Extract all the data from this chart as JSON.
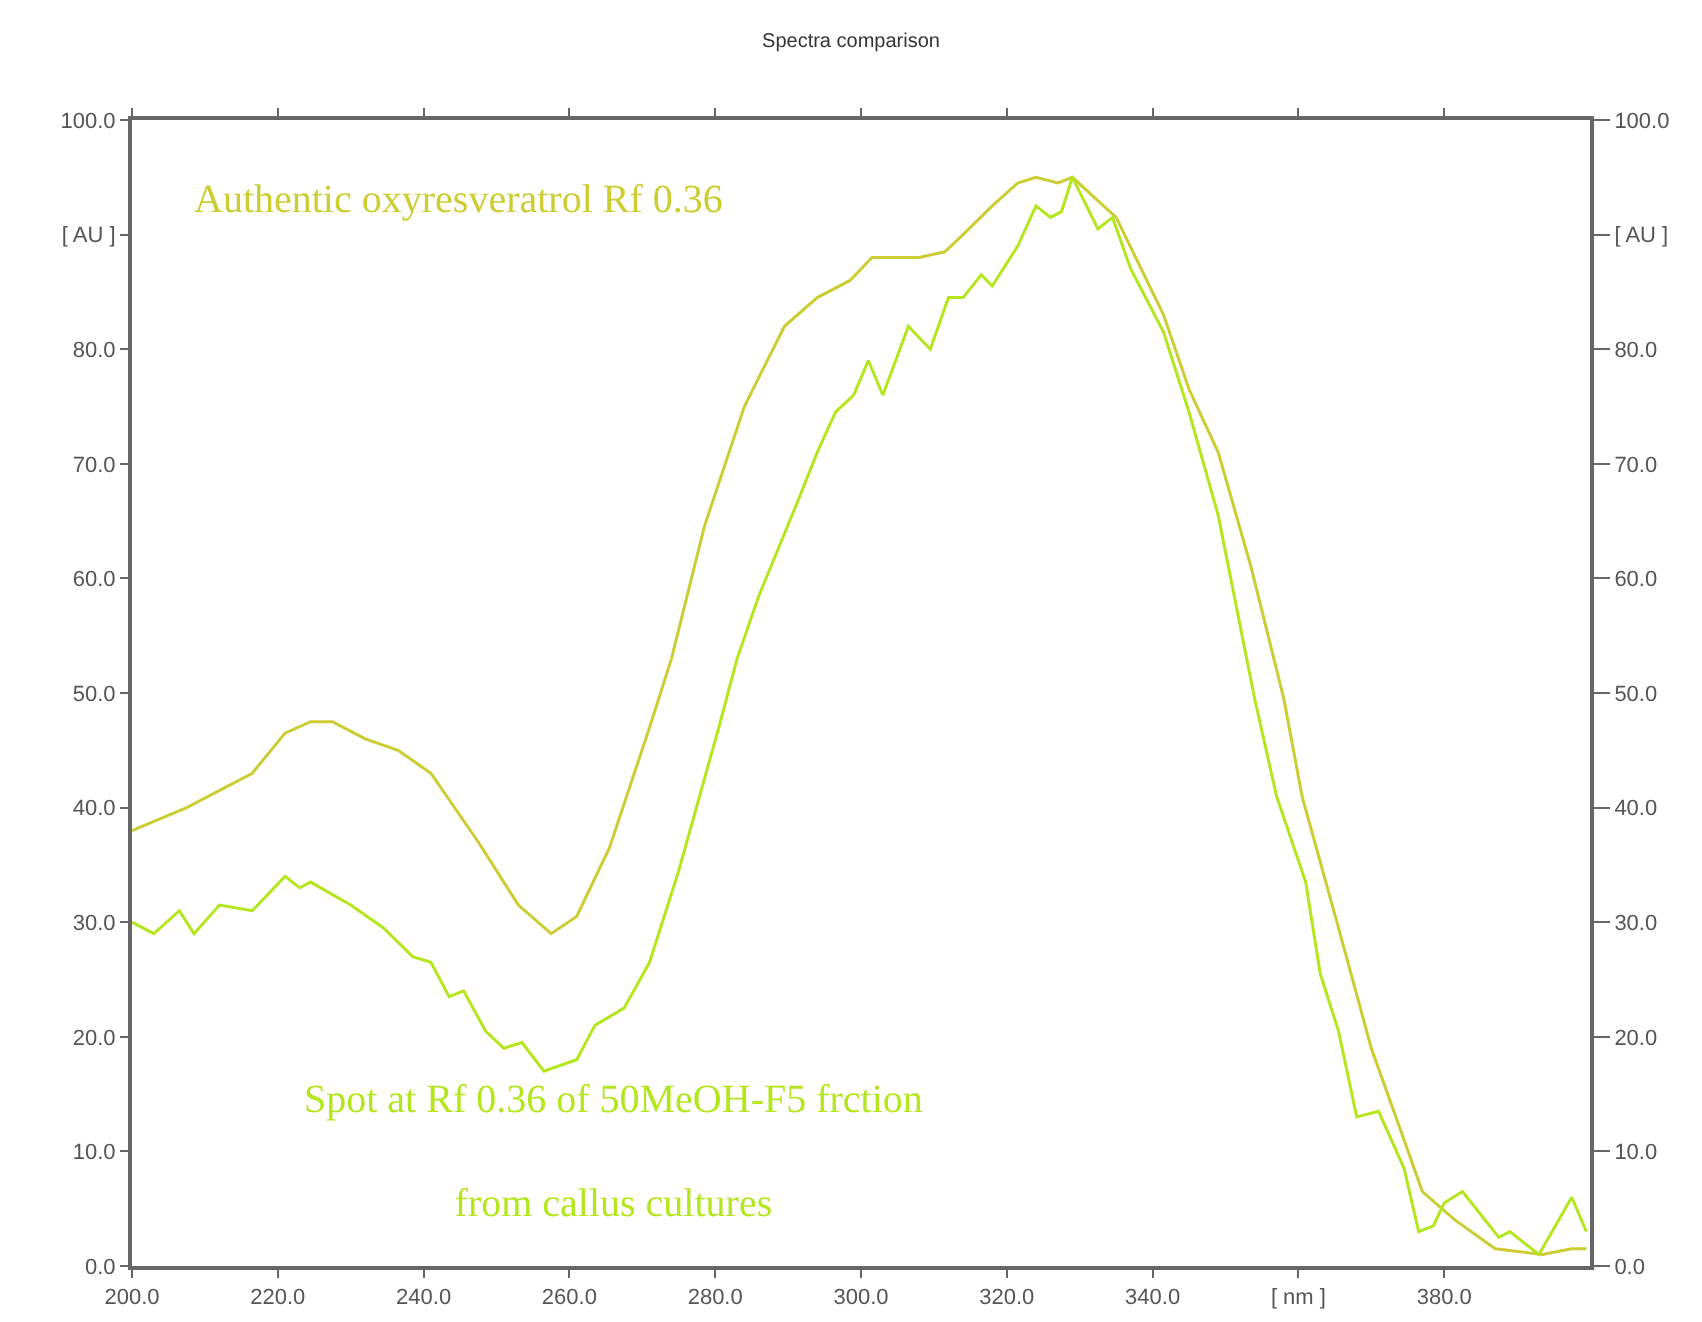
{
  "chart_data": {
    "type": "line",
    "title": "Spectra comparison",
    "xlim": [
      200,
      400
    ],
    "xticks": [
      {
        "value": 200,
        "label": "200.0"
      },
      {
        "value": 220,
        "label": "220.0"
      },
      {
        "value": 240,
        "label": "240.0"
      },
      {
        "value": 260,
        "label": "260.0"
      },
      {
        "value": 280,
        "label": "280.0"
      },
      {
        "value": 300,
        "label": "300.0"
      },
      {
        "value": 320,
        "label": "320.0"
      },
      {
        "value": 340,
        "label": "340.0"
      },
      {
        "value": 360,
        "label": "[ nm ]"
      },
      {
        "value": 380,
        "label": "380.0"
      }
    ],
    "ylim": [
      0,
      100
    ],
    "yticks": [
      {
        "value": 0,
        "label": "0.0"
      },
      {
        "value": 10,
        "label": "10.0"
      },
      {
        "value": 20,
        "label": "20.0"
      },
      {
        "value": 30,
        "label": "30.0"
      },
      {
        "value": 40,
        "label": "40.0"
      },
      {
        "value": 50,
        "label": "50.0"
      },
      {
        "value": 60,
        "label": "60.0"
      },
      {
        "value": 70,
        "label": "70.0"
      },
      {
        "value": 80,
        "label": "80.0"
      },
      {
        "value": 90,
        "label": "[ AU ]"
      },
      {
        "value": 100,
        "label": "100.0"
      }
    ],
    "y2lim": [
      0,
      100
    ],
    "y2ticks": [
      {
        "value": 0,
        "label": "0.0"
      },
      {
        "value": 10,
        "label": "10.0"
      },
      {
        "value": 20,
        "label": "20.0"
      },
      {
        "value": 30,
        "label": "30.0"
      },
      {
        "value": 40,
        "label": "40.0"
      },
      {
        "value": 50,
        "label": "50.0"
      },
      {
        "value": 60,
        "label": "60.0"
      },
      {
        "value": 70,
        "label": "70.0"
      },
      {
        "value": 80,
        "label": "80.0"
      },
      {
        "value": 90,
        "label": "[ AU ]"
      },
      {
        "value": 100,
        "label": "100.0"
      }
    ],
    "grid": false,
    "legend": false,
    "marker": "none",
    "line_style": "solid",
    "series": [
      {
        "name": "Authentic oxyresveratrol Rf 0.36",
        "color": "#cccc33",
        "x": [
          200,
          207.5,
          216.5,
          221,
          224.5,
          227.5,
          232,
          236.5,
          241,
          247.5,
          253,
          257.5,
          261,
          265.5,
          271,
          274,
          278.5,
          284,
          289.5,
          294,
          298.5,
          301.5,
          308,
          311.5,
          314,
          318,
          321.5,
          324,
          327,
          329,
          335,
          341.5,
          345,
          349,
          353.5,
          358,
          360.5,
          365.5,
          370,
          374.5,
          377,
          381.5,
          387,
          393.5,
          397.5,
          399.5
        ],
        "values": [
          38,
          40,
          43,
          46.5,
          47.5,
          47.5,
          46,
          45,
          43,
          37,
          31.5,
          29,
          30.5,
          36.5,
          47,
          53,
          64.5,
          75,
          82,
          84.5,
          86,
          88,
          88,
          88.5,
          90,
          92.5,
          94.5,
          95,
          94.5,
          95,
          91.5,
          83,
          76.5,
          71,
          61,
          49.5,
          41,
          29.5,
          19,
          11,
          6.5,
          4,
          1.5,
          1,
          1.5,
          1.5
        ]
      },
      {
        "name": "Spot at Rf 0.36 of 50MeOH-F5 frction\nfrom callus cultures",
        "color": "#b4e61e",
        "x": [
          200,
          203,
          206.5,
          208.5,
          212,
          216.5,
          221,
          223,
          224.5,
          230,
          234.5,
          238.5,
          241,
          243.5,
          245.5,
          248.5,
          251,
          253.5,
          256.5,
          261,
          263.5,
          267.5,
          271,
          275,
          280.5,
          283,
          286,
          291.5,
          294,
          296.5,
          299,
          301,
          303,
          306.5,
          309.5,
          312,
          314,
          316.5,
          318,
          321.5,
          324,
          326,
          327.5,
          329,
          332.5,
          334.5,
          337,
          341.5,
          345,
          349,
          354,
          357,
          361,
          363,
          365.5,
          368,
          371,
          374.5,
          376.5,
          378.5,
          380,
          382.5,
          387.5,
          389,
          393,
          397.5,
          399.5
        ],
        "values": [
          30,
          29,
          31,
          29,
          31.5,
          31,
          34,
          33,
          33.5,
          31.5,
          29.5,
          27,
          26.5,
          23.5,
          24,
          20.5,
          19,
          19.5,
          17,
          18,
          21,
          22.5,
          26.5,
          34.5,
          47,
          53,
          58.5,
          67,
          71,
          74.5,
          76,
          79,
          76,
          82,
          80,
          84.5,
          84.5,
          86.5,
          85.5,
          89,
          92.5,
          91.5,
          92,
          95,
          90.5,
          91.5,
          87,
          81.5,
          74.5,
          65.5,
          49.5,
          41,
          33.5,
          25.5,
          20.5,
          13,
          13.5,
          8.5,
          3,
          3.5,
          5.5,
          6.5,
          2.5,
          3,
          1,
          6,
          3
        ]
      }
    ]
  }
}
